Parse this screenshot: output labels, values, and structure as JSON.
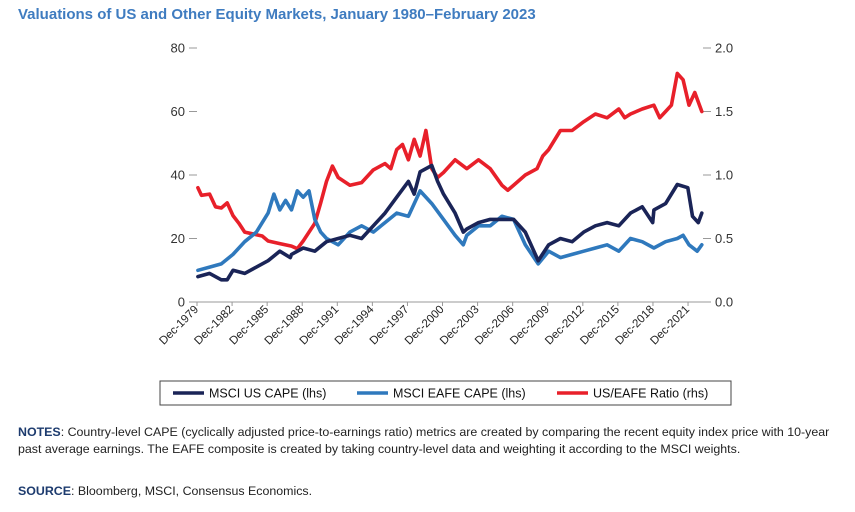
{
  "header": {
    "title": "Valuations of US and Other Equity Markets, January 1980–February 2023"
  },
  "notes": {
    "label": "NOTES",
    "text": ": Country-level CAPE (cyclically adjusted price-to-earnings ratio) metrics are created by comparing the recent equity index price with 10-year past average earnings. The EAFE composite is created by taking country-level data and weighting it according to the MSCI weights."
  },
  "source": {
    "label": "SOURCE",
    "text": ": Bloomberg, MSCI, Consensus Economics."
  },
  "colors": {
    "us": "#1a2457",
    "eafe": "#2f79bd",
    "ratio": "#e8202a",
    "axis": "#999999"
  },
  "chart_data": {
    "type": "line",
    "title": "Valuations of US and Other Equity Markets, January 1980–February 2023",
    "xlabel": "",
    "ylabel": "",
    "ylim": [
      0,
      80
    ],
    "y2lim": [
      0.0,
      2.0
    ],
    "yticks": [
      "0",
      "20",
      "40",
      "60",
      "80"
    ],
    "y2ticks": [
      "0.0",
      "0.5",
      "1.0",
      "1.5",
      "2.0"
    ],
    "xticks": [
      "Dec-1979",
      "Dec-1982",
      "Dec-1985",
      "Dec-1988",
      "Dec-1991",
      "Dec-1994",
      "Dec-1997",
      "Dec-2000",
      "Dec-2003",
      "Dec-2006",
      "Dec-2009",
      "Dec-2012",
      "Dec-2015",
      "Dec-2018",
      "Dec-2021"
    ],
    "legend_position": "bottom",
    "series": [
      {
        "name": "MSCI US CAPE (lhs)",
        "axis": "left",
        "x": [
          1980,
          1981,
          1982,
          1982.5,
          1983,
          1984,
          1985,
          1986,
          1987,
          1987.9,
          1988,
          1989,
          1990,
          1991,
          1992,
          1993,
          1994,
          1995,
          1996,
          1997,
          1998,
          1998.5,
          1999,
          2000,
          2000.5,
          2001,
          2002,
          2002.7,
          2003,
          2004,
          2005,
          2006,
          2007,
          2008,
          2009.1,
          2010,
          2011,
          2012,
          2013,
          2014,
          2015,
          2016,
          2017,
          2018,
          2018.9,
          2019,
          2020,
          2021,
          2021.9,
          2022.3,
          2022.8,
          2023.1
        ],
        "values": [
          8,
          9,
          7,
          7,
          10,
          9,
          11,
          13,
          16,
          14,
          15,
          17,
          16,
          19,
          20,
          21,
          20,
          24,
          28,
          33,
          38,
          34,
          41,
          43,
          38,
          34,
          28,
          22,
          23,
          25,
          26,
          26,
          26,
          22,
          13,
          18,
          20,
          19,
          22,
          24,
          25,
          24,
          28,
          30,
          25,
          29,
          31,
          37,
          36,
          27,
          25,
          28
        ]
      },
      {
        "name": "MSCI EAFE CAPE (lhs)",
        "axis": "left",
        "x": [
          1980,
          1981,
          1982,
          1983,
          1984,
          1985,
          1986,
          1986.5,
          1987,
          1987.5,
          1988,
          1988.5,
          1989,
          1989.5,
          1990,
          1990.5,
          1991,
          1992,
          1993,
          1994,
          1995,
          1996,
          1997,
          1998,
          1999,
          2000,
          2001,
          2002,
          2002.7,
          2003,
          2004,
          2005,
          2006,
          2007,
          2008,
          2009.1,
          2010,
          2011,
          2012,
          2013,
          2014,
          2015,
          2016,
          2017,
          2018,
          2019,
          2020,
          2021,
          2021.5,
          2022,
          2022.7,
          2023.1
        ],
        "values": [
          10,
          11,
          12,
          15,
          19,
          22,
          28,
          34,
          29,
          32,
          29,
          35,
          33,
          35,
          26,
          22,
          20,
          18,
          22,
          24,
          22,
          25,
          28,
          27,
          35,
          31,
          26,
          21,
          18,
          21,
          24,
          24,
          27,
          26,
          18,
          12,
          16,
          14,
          15,
          16,
          17,
          18,
          16,
          20,
          19,
          17,
          19,
          20,
          21,
          18,
          16,
          18
        ]
      },
      {
        "name": "US/EAFE Ratio (rhs)",
        "axis": "right",
        "x": [
          1980,
          1980.3,
          1981,
          1981.5,
          1982,
          1982.5,
          1983,
          1983.5,
          1984,
          1985,
          1985.5,
          1986,
          1987,
          1988,
          1988.5,
          1989,
          1990,
          1990.5,
          1991,
          1991.5,
          1992,
          1993,
          1994,
          1995,
          1996,
          1996.5,
          1997,
          1997.5,
          1998,
          1998.5,
          1999,
          1999.5,
          2000,
          2000.5,
          2001,
          2002,
          2003,
          2004,
          2005,
          2006,
          2006.5,
          2007,
          2008,
          2009,
          2009.5,
          2010,
          2011,
          2012,
          2013,
          2014,
          2015,
          2016,
          2016.5,
          2017,
          2018,
          2019,
          2019.5,
          2020,
          2020.5,
          2021,
          2021.5,
          2022,
          2022.5,
          2023.1
        ],
        "values": [
          0.9,
          0.84,
          0.85,
          0.75,
          0.74,
          0.78,
          0.68,
          0.62,
          0.55,
          0.53,
          0.52,
          0.48,
          0.46,
          0.44,
          0.42,
          0.48,
          0.62,
          0.78,
          0.95,
          1.07,
          0.98,
          0.92,
          0.94,
          1.04,
          1.09,
          1.05,
          1.2,
          1.24,
          1.12,
          1.28,
          1.15,
          1.35,
          1.05,
          0.98,
          1.02,
          1.12,
          1.05,
          1.12,
          1.05,
          0.92,
          0.88,
          0.92,
          1.0,
          1.05,
          1.15,
          1.2,
          1.35,
          1.35,
          1.42,
          1.48,
          1.45,
          1.52,
          1.45,
          1.48,
          1.52,
          1.55,
          1.45,
          1.5,
          1.55,
          1.8,
          1.75,
          1.55,
          1.65,
          1.5
        ]
      }
    ]
  }
}
